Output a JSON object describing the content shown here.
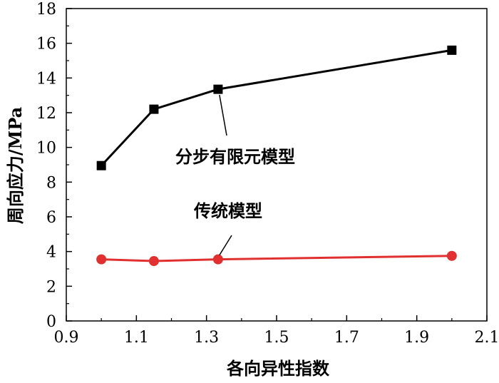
{
  "chart_data": {
    "type": "line",
    "title": "",
    "xlabel": "各向异性指数",
    "ylabel": "周向应力/MPa",
    "xlim": [
      0.9,
      2.1
    ],
    "ylim": [
      0,
      18
    ],
    "xticks": [
      "0.9",
      "1.1",
      "1.3",
      "1.5",
      "1.7",
      "1.9",
      "2.1"
    ],
    "yticks": [
      "0",
      "2",
      "4",
      "6",
      "8",
      "10",
      "12",
      "14",
      "16",
      "18"
    ],
    "grid": false,
    "legend": "none (series labeled by annotations with leader lines)",
    "series": [
      {
        "name": "分步有限元模型",
        "color": "#000000",
        "marker": "square",
        "x": [
          1.0,
          1.15,
          1.333,
          2.0
        ],
        "y": [
          8.95,
          12.2,
          13.35,
          15.6
        ]
      },
      {
        "name": "传统模型",
        "color": "#e03030",
        "marker": "circle",
        "x": [
          1.0,
          1.15,
          1.333,
          2.0
        ],
        "y": [
          3.55,
          3.45,
          3.55,
          3.75
        ]
      }
    ],
    "annotations": [
      {
        "text": "分步有限元模型",
        "series": 0
      },
      {
        "text": "传统模型",
        "series": 1
      }
    ]
  }
}
